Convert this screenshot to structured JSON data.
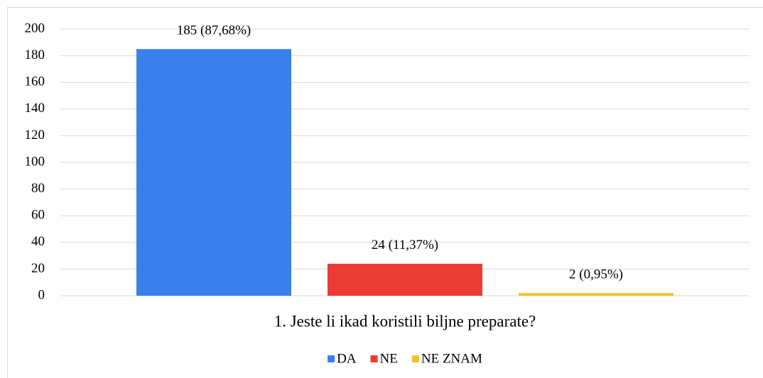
{
  "chart_data": {
    "type": "bar",
    "categories": [
      "1. Jeste li ikad koristili biljne preparate?"
    ],
    "series": [
      {
        "name": "DA",
        "color": "#3b80ea",
        "values": [
          185
        ],
        "value_labels": [
          "185 (87,68%)"
        ]
      },
      {
        "name": "NE",
        "color": "#ea3b34",
        "values": [
          24
        ],
        "value_labels": [
          "24 (11,37%)"
        ]
      },
      {
        "name": "NE ZNAM",
        "color": "#f3c22e",
        "values": [
          2
        ],
        "value_labels": [
          "2 (0,95%)"
        ]
      }
    ],
    "ylim": [
      0,
      200
    ],
    "yticks": [
      0,
      20,
      40,
      60,
      80,
      100,
      120,
      140,
      160,
      180,
      200
    ],
    "grid": true,
    "legend": "bottom"
  }
}
